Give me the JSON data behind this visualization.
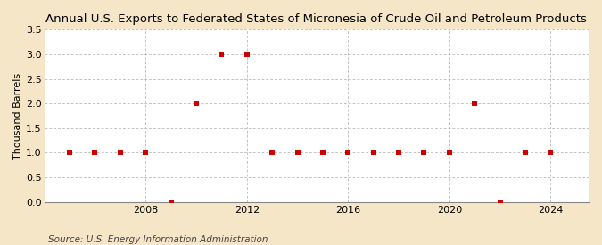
{
  "title": "Annual U.S. Exports to Federated States of Micronesia of Crude Oil and Petroleum Products",
  "ylabel": "Thousand Barrels",
  "source": "Source: U.S. Energy Information Administration",
  "figure_bg": "#f5e6c8",
  "plot_bg": "#ffffff",
  "years": [
    2005,
    2006,
    2007,
    2008,
    2009,
    2010,
    2011,
    2012,
    2013,
    2014,
    2015,
    2016,
    2017,
    2018,
    2019,
    2020,
    2021,
    2022,
    2023,
    2024
  ],
  "values": [
    1,
    1,
    1,
    1,
    0,
    2,
    3,
    3,
    1,
    1,
    1,
    1,
    1,
    1,
    1,
    1,
    2,
    0,
    1,
    1
  ],
  "marker_color": "#cc0000",
  "marker_size": 4,
  "ylim": [
    0,
    3.5
  ],
  "xlim": [
    2004,
    2025.5
  ],
  "yticks": [
    0.0,
    0.5,
    1.0,
    1.5,
    2.0,
    2.5,
    3.0,
    3.5
  ],
  "xticks": [
    2008,
    2012,
    2016,
    2020,
    2024
  ],
  "grid_color": "#aaaaaa",
  "title_fontsize": 9.5,
  "label_fontsize": 8,
  "tick_fontsize": 8,
  "source_fontsize": 7.5
}
